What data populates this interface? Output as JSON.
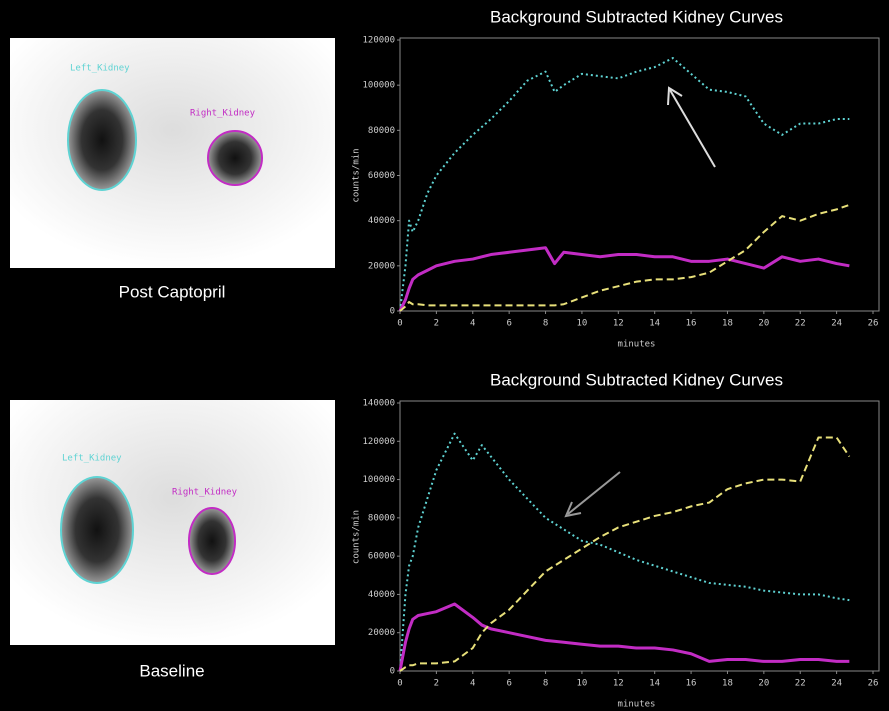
{
  "panels": [
    {
      "caption": "Post Captopril",
      "left_label": "Left_Kidney",
      "right_label": "Right_Kidney"
    },
    {
      "caption": "Baseline",
      "left_label": "Left_Kidney",
      "right_label": "Right_Kidney"
    }
  ],
  "chart_data": [
    {
      "type": "line",
      "title": "Background Subtracted Kidney Curves",
      "x_label": "minutes",
      "y_label": "counts/min",
      "x": [
        0,
        0.3,
        0.5,
        0.7,
        1,
        1.5,
        2,
        3,
        4,
        5,
        6,
        7,
        8,
        8.5,
        9,
        10,
        11,
        12,
        13,
        14,
        15,
        16,
        17,
        18,
        19,
        20,
        21,
        22,
        23,
        24,
        24.7
      ],
      "series": [
        {
          "color": "#5fd3d3",
          "values": [
            0,
            20000,
            40000,
            35000,
            40000,
            52000,
            60000,
            70000,
            78000,
            85000,
            93000,
            102000,
            106000,
            97000,
            100000,
            105000,
            104000,
            103000,
            106000,
            108000,
            112000,
            105000,
            98000,
            97000,
            95000,
            83000,
            78000,
            83000,
            83000,
            85000,
            85000
          ]
        },
        {
          "color": "#c22cc4",
          "values": [
            0,
            5000,
            10000,
            14000,
            16000,
            18000,
            20000,
            22000,
            23000,
            25000,
            26000,
            27000,
            28000,
            21000,
            26000,
            25000,
            24000,
            25000,
            25000,
            24000,
            24000,
            22000,
            22000,
            23000,
            21000,
            19000,
            24000,
            22000,
            23000,
            21000,
            20000
          ]
        },
        {
          "color": "#e8e07a",
          "values": [
            0,
            2000,
            4000,
            3000,
            3000,
            2500,
            2500,
            2500,
            2500,
            2500,
            2500,
            2500,
            2500,
            2500,
            3000,
            6000,
            9000,
            11000,
            13000,
            14000,
            14000,
            15000,
            17000,
            22000,
            27000,
            35000,
            42000,
            40000,
            43000,
            45000,
            47000
          ]
        }
      ],
      "xlim": [
        0,
        26
      ],
      "xticks": [
        0,
        2,
        4,
        6,
        8,
        10,
        12,
        14,
        16,
        18,
        20,
        22,
        24,
        26
      ],
      "ylim": [
        0,
        120000
      ],
      "yticks": [
        0,
        20000,
        40000,
        60000,
        80000,
        100000,
        120000
      ]
    },
    {
      "type": "line",
      "title": "Background Subtracted Kidney Curves",
      "x_label": "minutes",
      "y_label": "counts/min",
      "x": [
        0,
        0.3,
        0.5,
        0.7,
        1,
        1.5,
        2,
        3,
        4,
        4.5,
        5,
        6,
        7,
        8,
        9,
        10,
        11,
        12,
        13,
        14,
        15,
        16,
        17,
        18,
        19,
        20,
        21,
        22,
        23,
        24,
        24.7
      ],
      "series": [
        {
          "color": "#5fd3d3",
          "values": [
            0,
            40000,
            55000,
            60000,
            75000,
            90000,
            105000,
            124000,
            110000,
            118000,
            112000,
            100000,
            90000,
            80000,
            74000,
            68000,
            66000,
            62000,
            58000,
            55000,
            52000,
            49000,
            46000,
            45000,
            44000,
            42000,
            41000,
            40000,
            40000,
            38000,
            37000
          ]
        },
        {
          "color": "#c22cc4",
          "values": [
            0,
            15000,
            22000,
            27000,
            29000,
            30000,
            31000,
            35000,
            28000,
            24000,
            22000,
            20000,
            18000,
            16000,
            15000,
            14000,
            13000,
            13000,
            12000,
            12000,
            11000,
            9000,
            5000,
            6000,
            6000,
            5000,
            5000,
            6000,
            6000,
            5000,
            5000
          ]
        },
        {
          "color": "#e8e07a",
          "values": [
            0,
            2000,
            3000,
            3000,
            4000,
            4000,
            4000,
            5000,
            12000,
            20000,
            25000,
            32000,
            42000,
            52000,
            58000,
            64000,
            70000,
            75000,
            78000,
            81000,
            83000,
            86000,
            88000,
            95000,
            98000,
            100000,
            100000,
            99000,
            122000,
            122000,
            112000
          ]
        }
      ],
      "xlim": [
        0,
        26
      ],
      "xticks": [
        0,
        2,
        4,
        6,
        8,
        10,
        12,
        14,
        16,
        18,
        20,
        22,
        24,
        26
      ],
      "ylim": [
        0,
        140000
      ],
      "yticks": [
        0,
        20000,
        40000,
        60000,
        80000,
        100000,
        120000,
        140000
      ]
    }
  ]
}
